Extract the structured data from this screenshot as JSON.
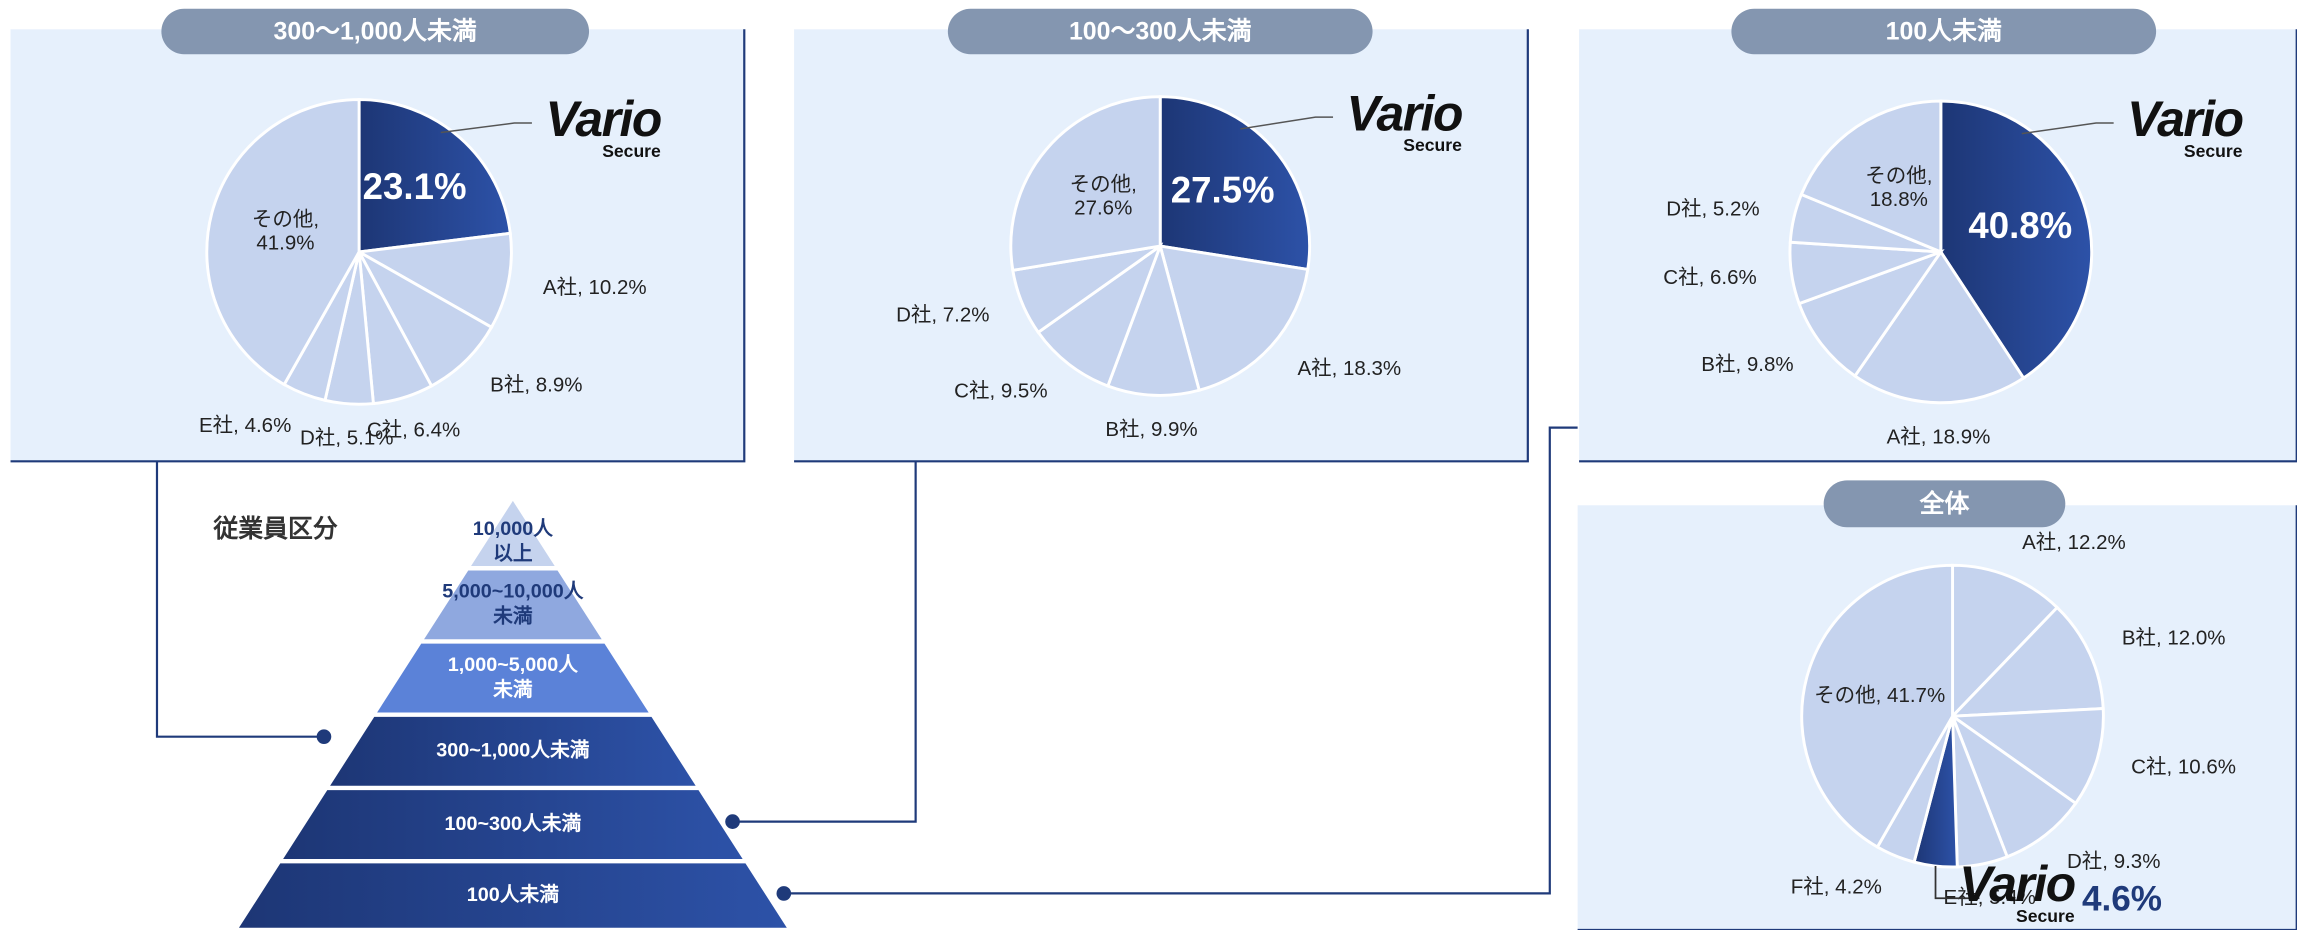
{
  "chart_data": [
    {
      "type": "pie",
      "title": "300～1,000人未満",
      "values": [
        23.1,
        10.2,
        8.9,
        6.4,
        5.1,
        4.6,
        41.9
      ],
      "value_labels": [
        "23.1%",
        "A社, 10.2%",
        "B社, 8.9%",
        "C社, 6.4%",
        "D社, 5.1%",
        "E社, 4.6%",
        "その他,\n41.9%"
      ],
      "colors": [
        "#223f86",
        "#c5d3ee",
        "#c5d3ee",
        "#c5d3ee",
        "#c5d3ee",
        "#c5d3ee",
        "#c5d3ee"
      ]
    },
    {
      "type": "pie",
      "title": "100～300人未満",
      "values": [
        27.5,
        18.3,
        9.9,
        9.5,
        7.2,
        27.6
      ],
      "value_labels": [
        "27.5%",
        "A社, 18.3%",
        "B社, 9.9%",
        "C社, 9.5%",
        "D社, 7.2%",
        "その他,\n27.6%"
      ],
      "colors": [
        "#223f86",
        "#c5d3ee",
        "#c5d3ee",
        "#c5d3ee",
        "#c5d3ee",
        "#c5d3ee"
      ]
    },
    {
      "type": "pie",
      "title": "100人未満",
      "values": [
        40.8,
        18.9,
        9.8,
        6.6,
        5.2,
        18.8
      ],
      "value_labels": [
        "40.8%",
        "A社, 18.9%",
        "B社, 9.8%",
        "C社, 6.6%",
        "D社, 5.2%",
        "その他,\n18.8%"
      ],
      "colors": [
        "#223f86",
        "#c5d3ee",
        "#c5d3ee",
        "#c5d3ee",
        "#c5d3ee",
        "#c5d3ee"
      ]
    },
    {
      "type": "pie",
      "title": "全体",
      "values": [
        12.2,
        12.0,
        10.6,
        9.3,
        5.4,
        4.6,
        4.2,
        41.7
      ],
      "value_labels": [
        "A社, 12.2%",
        "B社, 12.0%",
        "C社, 10.6%",
        "D社, 9.3%",
        "E社, 5.4%",
        "4.6%",
        "F社, 4.2%",
        "その他, 41.7%"
      ],
      "colors": [
        "#c5d3ee",
        "#c5d3ee",
        "#c5d3ee",
        "#c5d3ee",
        "#c5d3ee",
        "#223f86",
        "#c5d3ee",
        "#c5d3ee"
      ]
    }
  ],
  "brand": {
    "name": "Vario",
    "sub": "Secure"
  },
  "pyramid": {
    "title": "従業員区分",
    "levels": [
      [
        "10,000人",
        "以上"
      ],
      [
        "5,000~10,000人",
        "未満"
      ],
      [
        "1,000~5,000人",
        "未満"
      ],
      [
        "300~1,000人未満"
      ],
      [
        "100~300人未満"
      ],
      [
        "100人未満"
      ]
    ],
    "colors": [
      "#c5d3ee",
      "#8fa8df",
      "#5b82d8",
      "#223f86",
      "#223f86",
      "#223f86"
    ]
  }
}
